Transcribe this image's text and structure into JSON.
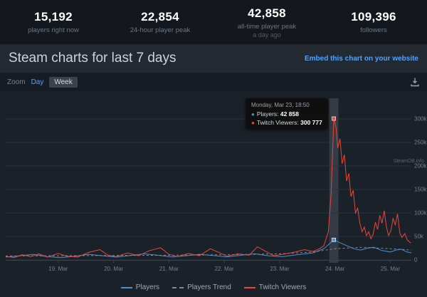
{
  "stats": {
    "items": [
      {
        "value": "15,192",
        "label": "players right now",
        "sub": ""
      },
      {
        "value": "22,854",
        "label": "24-hour player peak",
        "sub": ""
      },
      {
        "value": "42,858",
        "label": "all-time player peak",
        "sub": "a day ago"
      },
      {
        "value": "109,396",
        "label": "followers",
        "sub": ""
      }
    ]
  },
  "header": {
    "title": "Steam charts for last 7 days",
    "embed_link": "Embed this chart on your website"
  },
  "controls": {
    "zoom_label": "Zoom",
    "day_label": "Day",
    "week_label": "Week"
  },
  "colors": {
    "accent_link": "#4da3ff",
    "players_line": "#4e8fd0",
    "trend_line": "#7e8c9a",
    "twitch_line": "#e6483f",
    "background_dark": "#14181e",
    "chart_background": "#1a2129"
  },
  "chart_data": {
    "type": "line",
    "title": "Steam charts for last 7 days",
    "x_domain": [
      18.05,
      25.38
    ],
    "x_ticks": [
      {
        "day": 19,
        "label": "19. Mar"
      },
      {
        "day": 20,
        "label": "20. Mar"
      },
      {
        "day": 21,
        "label": "21. Mar"
      },
      {
        "day": 22,
        "label": "22. Mar"
      },
      {
        "day": 23,
        "label": "23. Mar"
      },
      {
        "day": 24,
        "label": "24. Mar"
      },
      {
        "day": 25,
        "label": "25. Mar"
      }
    ],
    "y_ticks": [
      "300k",
      "250k",
      "200k",
      "150k",
      "100k",
      "50k",
      "0"
    ],
    "y_scale_max": 300000,
    "ylim": [
      0,
      300777
    ],
    "grid": true,
    "legend_position": "bottom",
    "credit": "SteamDB.info",
    "tooltip": {
      "title": "Monday, Mar 23, 18:50",
      "rows": [
        {
          "name": "Players",
          "value": "42 858",
          "color": "#4e8fd0"
        },
        {
          "name": "Twitch Viewers",
          "value": "300 777",
          "color": "#e6483f"
        }
      ]
    },
    "series": [
      {
        "name": "Players",
        "color": "#4e8fd0",
        "dashed": false,
        "marker": true,
        "points": [
          [
            18.05,
            6000
          ],
          [
            18.3,
            9000
          ],
          [
            18.55,
            12000
          ],
          [
            18.8,
            7000
          ],
          [
            19.05,
            5000
          ],
          [
            19.3,
            8000
          ],
          [
            19.55,
            12000
          ],
          [
            19.8,
            9000
          ],
          [
            20.05,
            6000
          ],
          [
            20.3,
            9500
          ],
          [
            20.55,
            13000
          ],
          [
            20.8,
            10000
          ],
          [
            21.05,
            6500
          ],
          [
            21.3,
            9000
          ],
          [
            21.55,
            12000
          ],
          [
            21.8,
            9500
          ],
          [
            22.05,
            6500
          ],
          [
            22.3,
            10000
          ],
          [
            22.55,
            13000
          ],
          [
            22.8,
            9000
          ],
          [
            23.05,
            7000
          ],
          [
            23.3,
            11000
          ],
          [
            23.6,
            15000
          ],
          [
            23.8,
            24000
          ],
          [
            23.98,
            42858
          ],
          [
            24.1,
            36000
          ],
          [
            24.22,
            30000
          ],
          [
            24.34,
            24000
          ],
          [
            24.46,
            21000
          ],
          [
            24.58,
            25000
          ],
          [
            24.7,
            27000
          ],
          [
            24.85,
            20000
          ],
          [
            25.0,
            17000
          ],
          [
            25.1,
            21000
          ],
          [
            25.2,
            22854
          ],
          [
            25.3,
            17000
          ],
          [
            25.38,
            15192
          ]
        ]
      },
      {
        "name": "Players Trend",
        "color": "#7e8c9a",
        "dashed": true,
        "marker": false,
        "points": [
          [
            18.05,
            8500
          ],
          [
            19.0,
            9000
          ],
          [
            20.0,
            9500
          ],
          [
            21.0,
            10000
          ],
          [
            22.0,
            11000
          ],
          [
            23.0,
            13000
          ],
          [
            23.6,
            17000
          ],
          [
            24.0,
            24000
          ],
          [
            24.5,
            27000
          ],
          [
            25.0,
            24000
          ],
          [
            25.38,
            21000
          ]
        ]
      },
      {
        "name": "Twitch Viewers",
        "color": "#e6483f",
        "dashed": false,
        "marker": true,
        "points": [
          [
            18.05,
            8000
          ],
          [
            18.2,
            5000
          ],
          [
            18.35,
            11000
          ],
          [
            18.5,
            7000
          ],
          [
            18.65,
            13000
          ],
          [
            18.8,
            6000
          ],
          [
            19.0,
            14000
          ],
          [
            19.15,
            8000
          ],
          [
            19.35,
            6000
          ],
          [
            19.55,
            16000
          ],
          [
            19.75,
            22000
          ],
          [
            19.9,
            10000
          ],
          [
            20.05,
            7000
          ],
          [
            20.25,
            15000
          ],
          [
            20.45,
            9000
          ],
          [
            20.65,
            20000
          ],
          [
            20.85,
            26000
          ],
          [
            21.0,
            12000
          ],
          [
            21.15,
            7000
          ],
          [
            21.35,
            14000
          ],
          [
            21.55,
            9000
          ],
          [
            21.75,
            24000
          ],
          [
            21.9,
            16000
          ],
          [
            22.05,
            8000
          ],
          [
            22.25,
            13000
          ],
          [
            22.45,
            10000
          ],
          [
            22.6,
            28000
          ],
          [
            22.75,
            18000
          ],
          [
            22.9,
            9000
          ],
          [
            23.05,
            12000
          ],
          [
            23.25,
            16000
          ],
          [
            23.45,
            22000
          ],
          [
            23.6,
            18000
          ],
          [
            23.72,
            24000
          ],
          [
            23.8,
            30000
          ],
          [
            23.88,
            60000
          ],
          [
            23.93,
            140000
          ],
          [
            23.98,
            300777
          ],
          [
            24.02,
            282000
          ],
          [
            24.05,
            238000
          ],
          [
            24.09,
            258000
          ],
          [
            24.13,
            205000
          ],
          [
            24.17,
            224000
          ],
          [
            24.21,
            168000
          ],
          [
            24.25,
            184000
          ],
          [
            24.29,
            135000
          ],
          [
            24.33,
            148000
          ],
          [
            24.37,
            100000
          ],
          [
            24.41,
            110000
          ],
          [
            24.45,
            78000
          ],
          [
            24.49,
            60000
          ],
          [
            24.53,
            70000
          ],
          [
            24.57,
            52000
          ],
          [
            24.61,
            60000
          ],
          [
            24.65,
            45000
          ],
          [
            24.69,
            55000
          ],
          [
            24.73,
            80000
          ],
          [
            24.77,
            65000
          ],
          [
            24.81,
            95000
          ],
          [
            24.85,
            78000
          ],
          [
            24.89,
            105000
          ],
          [
            24.93,
            70000
          ],
          [
            24.97,
            52000
          ],
          [
            25.01,
            62000
          ],
          [
            25.05,
            88000
          ],
          [
            25.09,
            75000
          ],
          [
            25.13,
            98000
          ],
          [
            25.17,
            58000
          ],
          [
            25.21,
            48000
          ],
          [
            25.26,
            56000
          ],
          [
            25.31,
            42000
          ],
          [
            25.37,
            36000
          ]
        ]
      }
    ]
  }
}
